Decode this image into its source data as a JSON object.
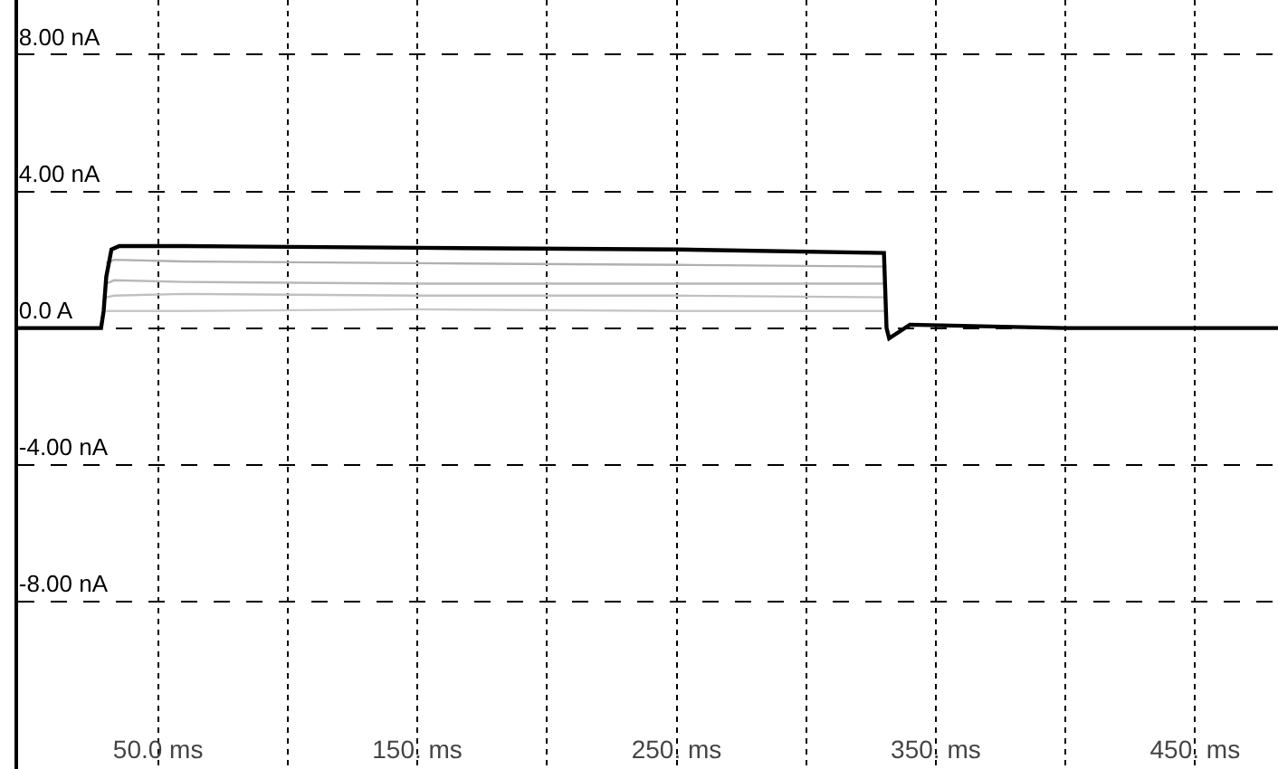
{
  "chart_data": {
    "type": "line",
    "xlim": [
      -4,
      482
    ],
    "ylim": [
      -12.9,
      9.6
    ],
    "xticks": [
      {
        "value": 50,
        "label": "50.0 ms"
      },
      {
        "value": 100,
        "label": null
      },
      {
        "value": 150,
        "label": "150. ms"
      },
      {
        "value": 200,
        "label": null
      },
      {
        "value": 250,
        "label": "250. ms"
      },
      {
        "value": 300,
        "label": null
      },
      {
        "value": 350,
        "label": "350. ms"
      },
      {
        "value": 400,
        "label": null
      },
      {
        "value": 450,
        "label": "450. ms"
      }
    ],
    "yticks": [
      {
        "value": 8,
        "label": "8.00 nA"
      },
      {
        "value": 4,
        "label": "4.00 nA"
      },
      {
        "value": 0,
        "label": "0.0 A"
      },
      {
        "value": -4,
        "label": "-4.00 nA"
      },
      {
        "value": -8,
        "label": "-8.00 nA"
      }
    ],
    "grid": true,
    "marker": "none",
    "line_style": "solid",
    "series": [
      {
        "color": "#c8c8c8",
        "x": [
          30,
          33,
          60,
          150,
          250,
          331
        ],
        "values": [
          0.5,
          0.5,
          0.5,
          0.55,
          0.5,
          0.5
        ]
      },
      {
        "color": "#c0c0c0",
        "x": [
          30,
          33,
          60,
          150,
          250,
          331
        ],
        "values": [
          0.9,
          0.95,
          1.0,
          0.95,
          0.95,
          0.9
        ]
      },
      {
        "color": "#b8b8b8",
        "x": [
          30,
          33,
          60,
          150,
          250,
          331
        ],
        "values": [
          1.3,
          1.4,
          1.35,
          1.3,
          1.3,
          1.3
        ]
      },
      {
        "color": "#b0b0b0",
        "x": [
          30,
          33,
          60,
          150,
          250,
          331
        ],
        "values": [
          1.9,
          2.0,
          1.95,
          1.9,
          1.85,
          1.8
        ]
      },
      {
        "color": "#000000",
        "x": [
          -4,
          28,
          29,
          30,
          32,
          35,
          60,
          150,
          250,
          330,
          331,
          332,
          340,
          400,
          482
        ],
        "values": [
          0,
          0,
          0.5,
          1.5,
          2.3,
          2.4,
          2.4,
          2.35,
          2.3,
          2.2,
          0,
          -0.3,
          0.1,
          0,
          0
        ]
      }
    ]
  }
}
